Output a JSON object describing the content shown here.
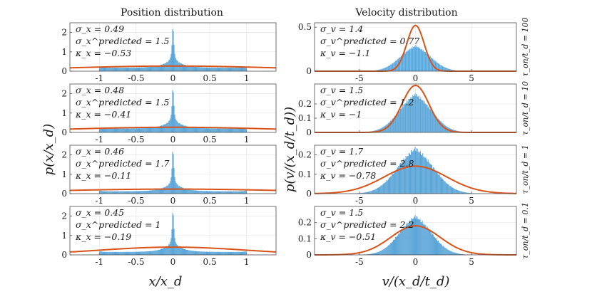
{
  "figure": {
    "titles": [
      "Position distribution",
      "Velocity distribution"
    ],
    "xlabel_left": "x/x_d",
    "xlabel_right": "v/(x_d/t_d)",
    "ylabel_left": "p(x/x_d)",
    "ylabel_right": "p(v/(x_d/t_d))"
  },
  "chart_data": [
    {
      "type": "histogram+line",
      "column": "position",
      "row_label": "τ_on/t_d = 100",
      "xlim": [
        -1.4,
        1.4
      ],
      "ylim": [
        0,
        2.5
      ],
      "xticks": [
        "-1",
        "-0.5",
        "0",
        "0.5",
        "1"
      ],
      "yticks": [
        "0",
        "1",
        "2"
      ],
      "show_xticks": true,
      "stats": [
        "σ_x = 0.49",
        "σ_x^predicted = 1.5",
        "κ_x = −0.53"
      ],
      "hist_shape": "position",
      "peak": 2.4,
      "base": 0.18,
      "curve": {
        "kind": "gauss",
        "mu": 0,
        "sigma": 1.5,
        "amp": 0.266
      }
    },
    {
      "type": "histogram+line",
      "column": "velocity",
      "row_label": "τ_on/t_d = 100",
      "xlim": [
        -9,
        9
      ],
      "ylim": [
        0,
        0.55
      ],
      "xticks": [
        "-5",
        "0",
        "5"
      ],
      "yticks": [
        "0",
        "0.5"
      ],
      "show_xticks": true,
      "stats": [
        "σ_v = 1.4",
        "σ_v^predicted = 0.77",
        "κ_v = −1.1"
      ],
      "hist_shape": "velocity",
      "hist_sigma": 1.4,
      "hist_peak": 0.29,
      "hist_cut": 3.6,
      "curve": {
        "kind": "gauss",
        "mu": 0,
        "sigma": 0.77,
        "amp": 0.52
      }
    },
    {
      "type": "histogram+line",
      "column": "position",
      "row_label": "τ_on/t_d = 10",
      "xlim": [
        -1.4,
        1.4
      ],
      "ylim": [
        0,
        2.5
      ],
      "xticks": [
        "-1",
        "-0.5",
        "0",
        "0.5",
        "1"
      ],
      "yticks": [
        "0",
        "1",
        "2"
      ],
      "show_xticks": true,
      "stats": [
        "σ_x = 0.48",
        "σ_x^predicted = 1.5",
        "κ_x = −0.41"
      ],
      "hist_shape": "position",
      "peak": 2.4,
      "base": 0.2,
      "curve": {
        "kind": "gauss",
        "mu": 0,
        "sigma": 1.5,
        "amp": 0.266
      }
    },
    {
      "type": "histogram+line",
      "column": "velocity",
      "row_label": "τ_on/t_d = 10",
      "xlim": [
        -9,
        9
      ],
      "ylim": [
        0,
        0.34
      ],
      "xticks": [
        "-5",
        "0",
        "5"
      ],
      "yticks": [
        "0",
        "0.1",
        "0.2"
      ],
      "show_xticks": false,
      "stats": [
        "σ_v = 1.5",
        "σ_v^predicted = 1.2",
        "κ_v = −1"
      ],
      "hist_shape": "velocity",
      "hist_sigma": 1.5,
      "hist_peak": 0.27,
      "hist_cut": 4.2,
      "curve": {
        "kind": "gauss",
        "mu": 0,
        "sigma": 1.2,
        "amp": 0.33
      }
    },
    {
      "type": "histogram+line",
      "column": "position",
      "row_label": "τ_on/t_d = 1",
      "xlim": [
        -1.4,
        1.4
      ],
      "ylim": [
        0,
        2.5
      ],
      "xticks": [
        "-1",
        "-0.5",
        "0",
        "0.5",
        "1"
      ],
      "yticks": [
        "0",
        "1",
        "2"
      ],
      "show_xticks": true,
      "stats": [
        "σ_x = 0.46",
        "σ_x^predicted = 1.7",
        "κ_x = −0.11"
      ],
      "hist_shape": "position",
      "peak": 2.4,
      "base": 0.12,
      "curve": {
        "kind": "gauss",
        "mu": 0,
        "sigma": 1.7,
        "amp": 0.235
      }
    },
    {
      "type": "histogram+line",
      "column": "velocity",
      "row_label": "τ_on/t_d = 1",
      "xlim": [
        -9,
        9
      ],
      "ylim": [
        0,
        0.25
      ],
      "xticks": [
        "-5",
        "0",
        "5"
      ],
      "yticks": [
        "0",
        "0.1",
        "0.2"
      ],
      "show_xticks": true,
      "stats": [
        "σ_v = 1.7",
        "σ_v^predicted = 2.8",
        "κ_v = −0.78"
      ],
      "hist_shape": "velocity",
      "hist_sigma": 1.7,
      "hist_peak": 0.235,
      "hist_cut": 5.8,
      "curve": {
        "kind": "gauss",
        "mu": 0,
        "sigma": 2.8,
        "amp": 0.142
      }
    },
    {
      "type": "histogram+line",
      "column": "position",
      "row_label": "τ_on/t_d = 0.1",
      "xlim": [
        -1.4,
        1.4
      ],
      "ylim": [
        0,
        2.5
      ],
      "xticks": [
        "-1",
        "-0.5",
        "0",
        "0.5",
        "1"
      ],
      "yticks": [
        "0",
        "1",
        "2"
      ],
      "show_xticks": true,
      "stats": [
        "σ_x = 0.45",
        "σ_x^predicted = 1",
        "κ_x = −0.19"
      ],
      "hist_shape": "position",
      "peak": 2.4,
      "base": 0.15,
      "curve": {
        "kind": "gauss",
        "mu": 0,
        "sigma": 1.0,
        "amp": 0.4
      }
    },
    {
      "type": "histogram+line",
      "column": "velocity",
      "row_label": "τ_on/t_d = 0.1",
      "xlim": [
        -9,
        9
      ],
      "ylim": [
        0,
        0.3
      ],
      "xticks": [
        "-5",
        "0",
        "5"
      ],
      "yticks": [
        "0",
        "0.1",
        "0.2"
      ],
      "show_xticks": true,
      "stats": [
        "σ_v = 1.5",
        "σ_v^predicted = 2.2",
        "κ_v = −0.51"
      ],
      "hist_shape": "velocity",
      "hist_sigma": 1.5,
      "hist_peak": 0.24,
      "hist_cut": 5.5,
      "curve": {
        "kind": "gauss",
        "mu": 0,
        "sigma": 2.2,
        "amp": 0.18
      }
    }
  ],
  "colors": {
    "bars": "#5aa5d8",
    "curve": "#d95319"
  }
}
